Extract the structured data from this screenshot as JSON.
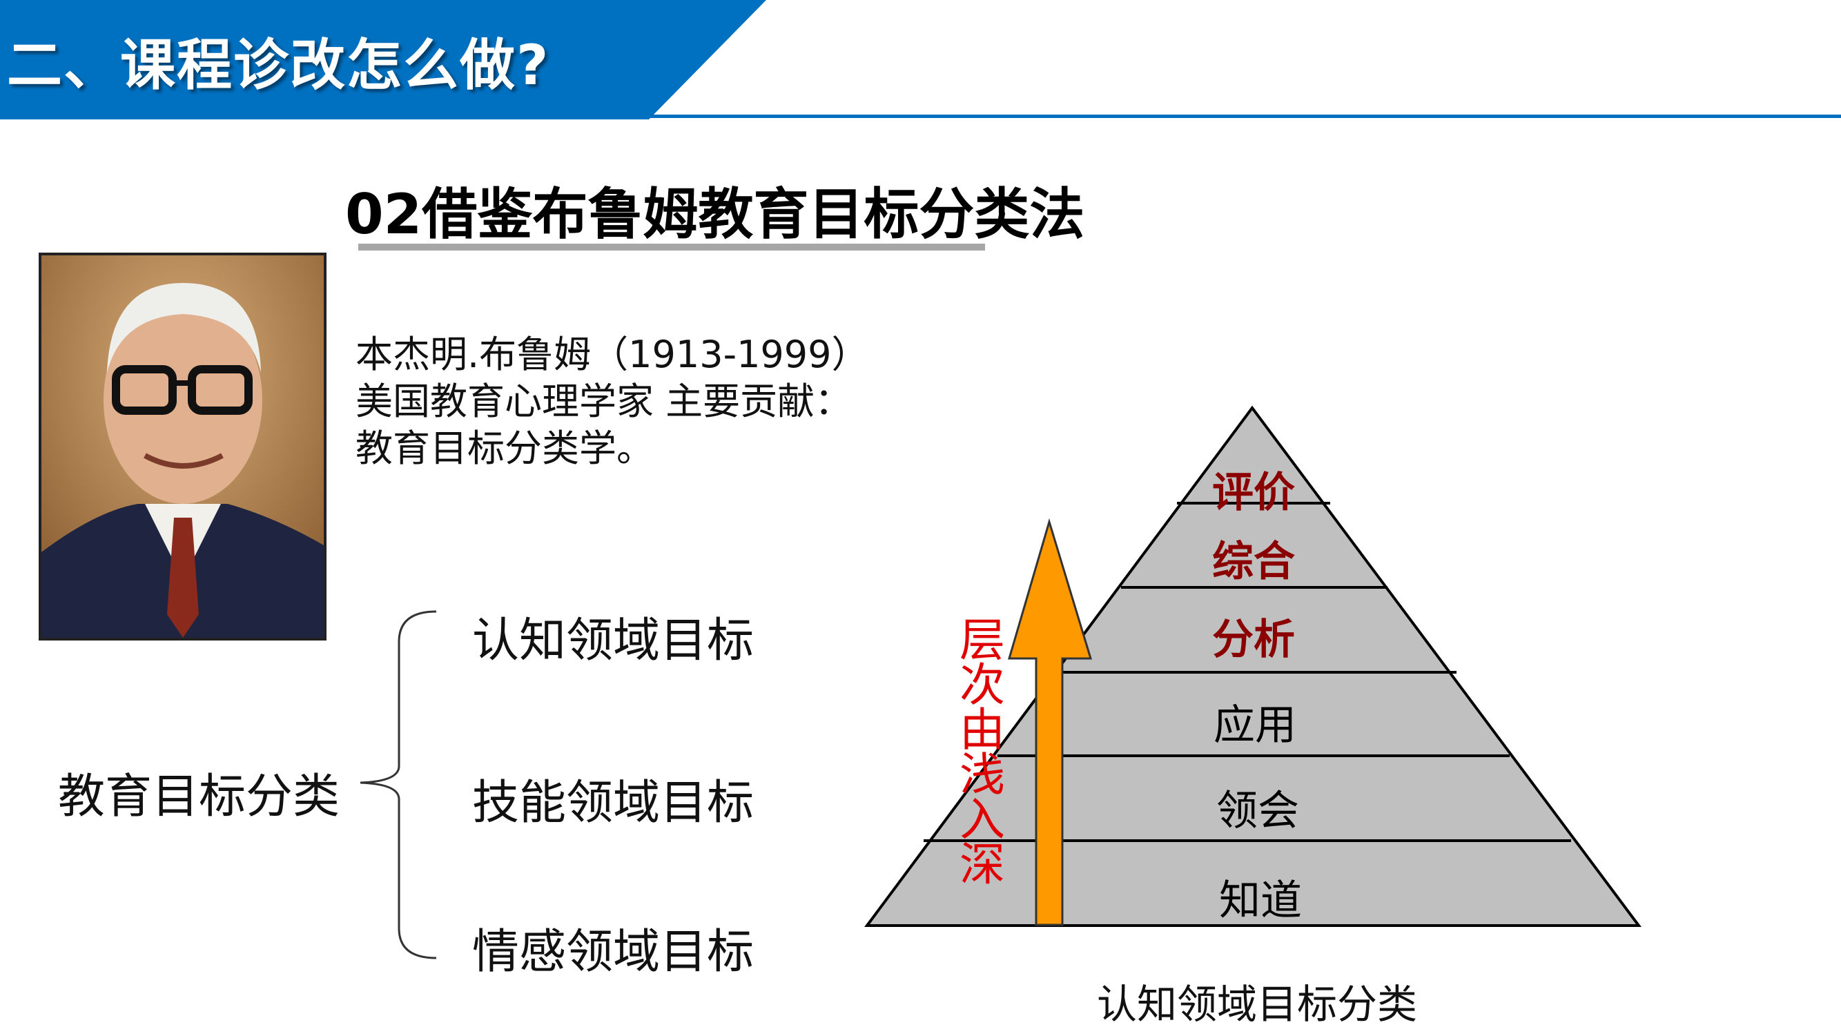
{
  "header": {
    "title": "二、课程诊改怎么做?",
    "accent_color": "#0070c0"
  },
  "section": {
    "title": "02借鉴布鲁姆教育目标分类法"
  },
  "bio": {
    "lines": [
      "本杰明.布鲁姆（1913-1999）",
      "美国教育心理学家 主要贡献：",
      "教育目标分类学。"
    ]
  },
  "classification": {
    "root": "教育目标分类",
    "items": [
      "认知领域目标",
      "技能领域目标",
      "情感领域目标"
    ]
  },
  "pyramid": {
    "levels_top_to_bottom": [
      "评价",
      "综合",
      "分析",
      "应用",
      "领会",
      "知道"
    ],
    "fill_color": "#c0c0c0",
    "upper_label_color": "#8b0000",
    "arrow_color": "#ff9900",
    "arrow_label": "层次由浅入深",
    "caption": "认知领域目标分类"
  }
}
